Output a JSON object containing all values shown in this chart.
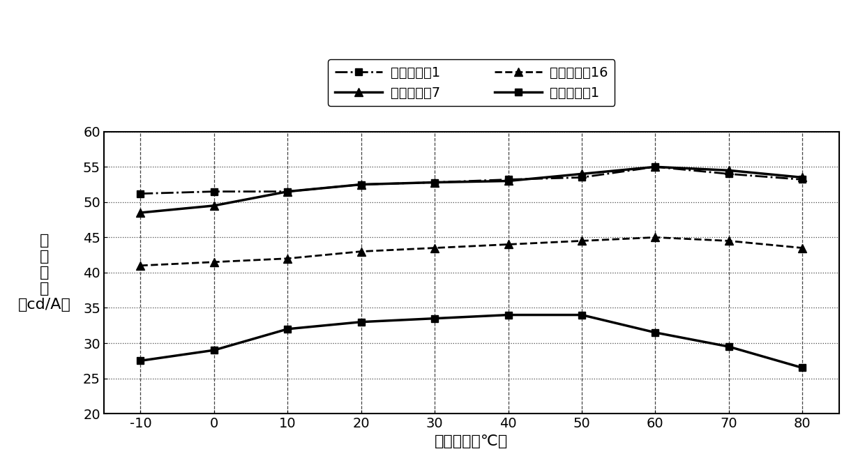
{
  "x": [
    -10,
    0,
    10,
    20,
    30,
    40,
    50,
    60,
    70,
    80
  ],
  "series_order": [
    "器件实施例1",
    "器件实施例7",
    "器件实施例16",
    "器件比较例1"
  ],
  "series": {
    "器件实施例1": {
      "y": [
        51.2,
        51.5,
        51.5,
        52.5,
        52.8,
        53.2,
        53.5,
        55.0,
        54.0,
        53.2
      ],
      "linestyle": "-.",
      "marker": "s",
      "color": "#000000",
      "linewidth": 2.0,
      "markersize": 7
    },
    "器件实施例7": {
      "y": [
        48.5,
        49.5,
        51.5,
        52.5,
        52.8,
        53.0,
        54.0,
        55.0,
        54.5,
        53.5
      ],
      "linestyle": "-",
      "marker": "^",
      "color": "#000000",
      "linewidth": 2.5,
      "markersize": 9
    },
    "器件实施例16": {
      "y": [
        41.0,
        41.5,
        42.0,
        43.0,
        43.5,
        44.0,
        44.5,
        45.0,
        44.5,
        43.5
      ],
      "linestyle": "--",
      "marker": "^",
      "color": "#000000",
      "linewidth": 2.0,
      "markersize": 8
    },
    "器件比较例1": {
      "y": [
        27.5,
        29.0,
        32.0,
        33.0,
        33.5,
        34.0,
        34.0,
        31.5,
        29.5,
        26.5
      ],
      "linestyle": "-",
      "marker": "s",
      "color": "#000000",
      "linewidth": 2.5,
      "markersize": 7
    }
  },
  "xlabel": "测量温度（℃）",
  "ylabel_lines": [
    "电",
    "流",
    "效",
    "率",
    "（cd/A）"
  ],
  "xlim": [
    -15,
    85
  ],
  "ylim": [
    20,
    60
  ],
  "xticks": [
    -10,
    0,
    10,
    20,
    30,
    40,
    50,
    60,
    70,
    80
  ],
  "yticks": [
    20,
    25,
    30,
    35,
    40,
    45,
    50,
    55,
    60
  ],
  "background_color": "#ffffff",
  "axis_fontsize": 16,
  "tick_fontsize": 14,
  "legend_fontsize": 14,
  "ylabel_fontsize": 16
}
